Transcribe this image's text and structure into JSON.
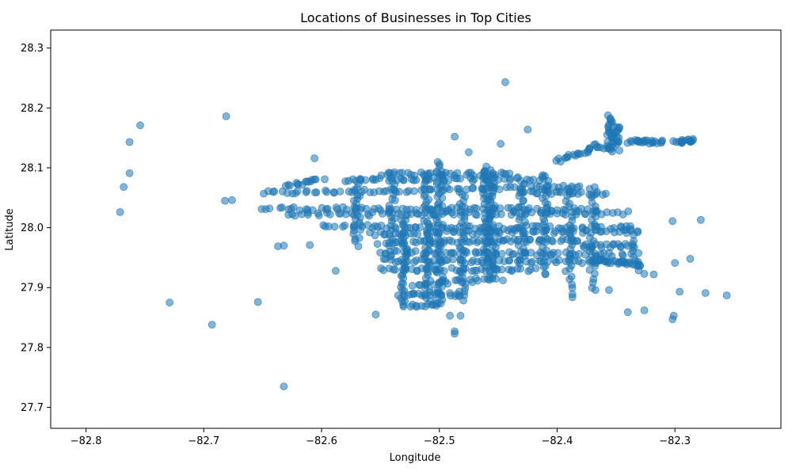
{
  "chart_data": {
    "type": "scatter",
    "title": "Locations of Businesses in Top Cities",
    "xlabel": "Longitude",
    "ylabel": "Latitude",
    "xlim": [
      -82.83,
      -82.21
    ],
    "ylim": [
      27.665,
      28.33
    ],
    "x_ticks": [
      -82.8,
      -82.7,
      -82.6,
      -82.5,
      -82.4,
      -82.3
    ],
    "x_tick_labels": [
      "−82.8",
      "−82.7",
      "−82.6",
      "−82.5",
      "−82.4",
      "−82.3"
    ],
    "y_ticks": [
      27.7,
      27.8,
      27.9,
      28.0,
      28.1,
      28.2,
      28.3
    ],
    "y_tick_labels": [
      "27.7",
      "27.8",
      "27.9",
      "28.0",
      "28.1",
      "28.2",
      "28.3"
    ],
    "grid": false,
    "legend": "none",
    "marker_color": "#1f77b4",
    "marker_alpha": 0.55,
    "outliers": [
      {
        "x": -82.754,
        "y": 28.171
      },
      {
        "x": -82.763,
        "y": 28.143
      },
      {
        "x": -82.763,
        "y": 28.091
      },
      {
        "x": -82.768,
        "y": 28.068
      },
      {
        "x": -82.771,
        "y": 28.026
      },
      {
        "x": -82.681,
        "y": 28.186
      },
      {
        "x": -82.682,
        "y": 28.045
      },
      {
        "x": -82.676,
        "y": 28.046
      },
      {
        "x": -82.729,
        "y": 27.875
      },
      {
        "x": -82.693,
        "y": 27.838
      },
      {
        "x": -82.654,
        "y": 27.876
      },
      {
        "x": -82.632,
        "y": 27.735
      },
      {
        "x": -82.637,
        "y": 27.969
      },
      {
        "x": -82.632,
        "y": 27.97
      },
      {
        "x": -82.61,
        "y": 27.971
      },
      {
        "x": -82.588,
        "y": 27.928
      },
      {
        "x": -82.606,
        "y": 28.116
      },
      {
        "x": -82.444,
        "y": 28.243
      },
      {
        "x": -82.425,
        "y": 28.164
      },
      {
        "x": -82.487,
        "y": 28.152
      },
      {
        "x": -82.448,
        "y": 28.14
      },
      {
        "x": -82.475,
        "y": 28.126
      },
      {
        "x": -82.554,
        "y": 27.855
      },
      {
        "x": -82.487,
        "y": 27.823
      },
      {
        "x": -82.487,
        "y": 27.827
      },
      {
        "x": -82.491,
        "y": 27.853
      },
      {
        "x": -82.482,
        "y": 27.853
      },
      {
        "x": -82.34,
        "y": 27.859
      },
      {
        "x": -82.326,
        "y": 27.862
      },
      {
        "x": -82.302,
        "y": 27.847
      },
      {
        "x": -82.301,
        "y": 27.853
      },
      {
        "x": -82.296,
        "y": 27.893
      },
      {
        "x": -82.274,
        "y": 27.891
      },
      {
        "x": -82.256,
        "y": 27.887
      },
      {
        "x": -82.3,
        "y": 27.941
      },
      {
        "x": -82.287,
        "y": 27.948
      },
      {
        "x": -82.302,
        "y": 28.011
      },
      {
        "x": -82.278,
        "y": 28.013
      },
      {
        "x": -82.318,
        "y": 27.922
      },
      {
        "x": -82.326,
        "y": 27.923
      },
      {
        "x": -82.356,
        "y": 27.896
      },
      {
        "x": -82.387,
        "y": 27.884
      },
      {
        "x": -82.387,
        "y": 27.889
      },
      {
        "x": -82.446,
        "y": 27.912
      },
      {
        "x": -82.535,
        "y": 27.887
      }
    ],
    "segments": [
      {
        "x1": -82.65,
        "y1": 28.058,
        "x2": -82.38,
        "y2": 28.068,
        "n": 70
      },
      {
        "x1": -82.65,
        "y1": 28.032,
        "x2": -82.37,
        "y2": 28.03,
        "n": 70
      },
      {
        "x1": -82.63,
        "y1": 28.022,
        "x2": -82.34,
        "y2": 28.025,
        "n": 70
      },
      {
        "x1": -82.6,
        "y1": 28.002,
        "x2": -82.34,
        "y2": 28.0,
        "n": 65
      },
      {
        "x1": -82.56,
        "y1": 27.99,
        "x2": -82.33,
        "y2": 27.995,
        "n": 60
      },
      {
        "x1": -82.55,
        "y1": 27.975,
        "x2": -82.38,
        "y2": 27.98,
        "n": 55
      },
      {
        "x1": -82.55,
        "y1": 27.96,
        "x2": -82.34,
        "y2": 27.955,
        "n": 60
      },
      {
        "x1": -82.55,
        "y1": 27.945,
        "x2": -82.33,
        "y2": 27.943,
        "n": 60
      },
      {
        "x1": -82.55,
        "y1": 27.93,
        "x2": -82.42,
        "y2": 27.93,
        "n": 40
      },
      {
        "x1": -82.58,
        "y1": 28.08,
        "x2": -82.41,
        "y2": 28.082,
        "n": 50
      },
      {
        "x1": -82.55,
        "y1": 28.09,
        "x2": -82.44,
        "y2": 28.09,
        "n": 35
      },
      {
        "x1": -82.52,
        "y1": 27.905,
        "x2": -82.45,
        "y2": 27.915,
        "n": 25
      },
      {
        "x1": -82.53,
        "y1": 27.89,
        "x2": -82.48,
        "y2": 27.888,
        "n": 20
      },
      {
        "x1": -82.53,
        "y1": 27.87,
        "x2": -82.5,
        "y2": 27.872,
        "n": 12
      },
      {
        "x1": -82.4,
        "y1": 28.112,
        "x2": -82.37,
        "y2": 28.132,
        "n": 18
      },
      {
        "x1": -82.37,
        "y1": 28.138,
        "x2": -82.35,
        "y2": 28.13,
        "n": 10
      },
      {
        "x1": -82.34,
        "y1": 28.144,
        "x2": -82.31,
        "y2": 28.143,
        "n": 22
      },
      {
        "x1": -82.3,
        "y1": 28.144,
        "x2": -82.283,
        "y2": 28.146,
        "n": 18
      },
      {
        "x1": -82.37,
        "y1": 27.947,
        "x2": -82.33,
        "y2": 27.938,
        "n": 22
      },
      {
        "x1": -82.38,
        "y1": 27.97,
        "x2": -82.34,
        "y2": 27.97,
        "n": 18
      },
      {
        "x1": -82.43,
        "y1": 28.06,
        "x2": -82.36,
        "y2": 28.057,
        "n": 25
      },
      {
        "x1": -82.46,
        "y1": 28.1,
        "x2": -82.46,
        "y2": 27.93,
        "n": 45
      },
      {
        "x1": -82.455,
        "y1": 28.095,
        "x2": -82.455,
        "y2": 27.92,
        "n": 40
      },
      {
        "x1": -82.5,
        "y1": 28.11,
        "x2": -82.5,
        "y2": 27.87,
        "n": 55
      },
      {
        "x1": -82.51,
        "y1": 28.09,
        "x2": -82.51,
        "y2": 27.88,
        "n": 45
      },
      {
        "x1": -82.53,
        "y1": 28.02,
        "x2": -82.53,
        "y2": 27.87,
        "n": 35
      },
      {
        "x1": -82.48,
        "y1": 28.06,
        "x2": -82.48,
        "y2": 27.88,
        "n": 35
      },
      {
        "x1": -82.43,
        "y1": 28.08,
        "x2": -82.43,
        "y2": 27.94,
        "n": 30
      },
      {
        "x1": -82.355,
        "y1": 28.185,
        "x2": -82.355,
        "y2": 28.13,
        "n": 25
      },
      {
        "x1": -82.35,
        "y1": 28.17,
        "x2": -82.35,
        "y2": 28.14,
        "n": 15
      },
      {
        "x1": -82.57,
        "y1": 28.08,
        "x2": -82.57,
        "y2": 27.97,
        "n": 25
      },
      {
        "x1": -82.41,
        "y1": 28.09,
        "x2": -82.41,
        "y2": 27.92,
        "n": 30
      },
      {
        "x1": -82.39,
        "y1": 28.07,
        "x2": -82.39,
        "y2": 27.9,
        "n": 28
      },
      {
        "x1": -82.37,
        "y1": 28.07,
        "x2": -82.37,
        "y2": 27.895,
        "n": 28
      },
      {
        "x1": -82.54,
        "y1": 28.09,
        "x2": -82.54,
        "y2": 27.95,
        "n": 25
      },
      {
        "x1": -82.34,
        "y1": 28.0,
        "x2": -82.33,
        "y2": 27.93,
        "n": 15
      },
      {
        "x1": -82.63,
        "y1": 28.07,
        "x2": -82.6,
        "y2": 28.08,
        "n": 15
      }
    ]
  }
}
